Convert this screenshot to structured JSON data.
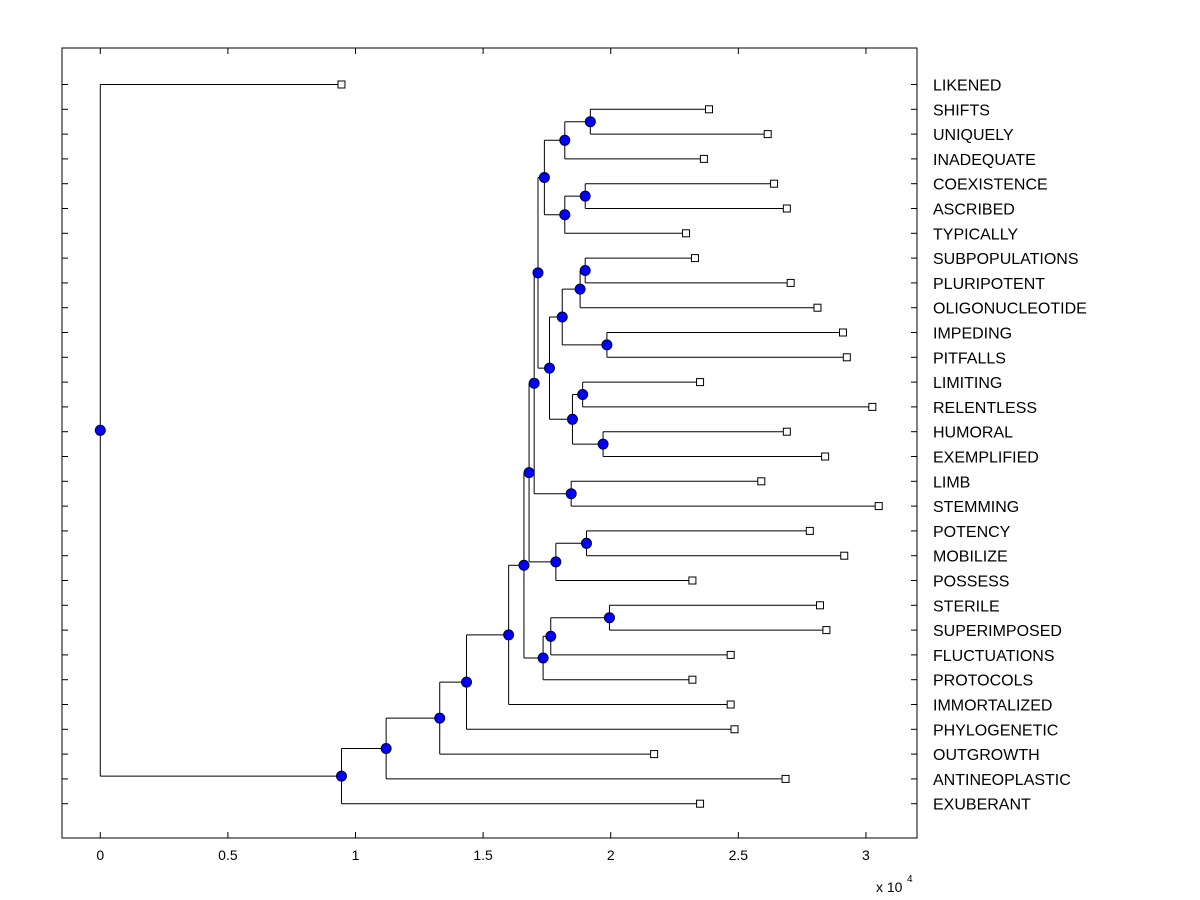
{
  "chart_data": {
    "type": "dendrogram",
    "orientation": "horizontal",
    "x_multiplier_label": "x 10",
    "x_multiplier_exponent": "4",
    "xlim": [
      -0.15,
      3.2
    ],
    "x_ticks": [
      {
        "value": 0,
        "label": "0"
      },
      {
        "value": 0.5,
        "label": "0.5"
      },
      {
        "value": 1,
        "label": "1"
      },
      {
        "value": 1.5,
        "label": "1.5"
      },
      {
        "value": 2,
        "label": "2"
      },
      {
        "value": 2.5,
        "label": "2.5"
      },
      {
        "value": 3,
        "label": "3"
      }
    ],
    "colors": {
      "internal_node": "#0000ff",
      "leaf_marker": "#ffffff",
      "line": "#000000"
    },
    "leaves": [
      {
        "id": "l0",
        "label": "LIKENED",
        "x": 0.945
      },
      {
        "id": "l1",
        "label": "SHIFTS",
        "x": 2.385
      },
      {
        "id": "l2",
        "label": "UNIQUELY",
        "x": 2.615
      },
      {
        "id": "l3",
        "label": "INADEQUATE",
        "x": 2.365
      },
      {
        "id": "l4",
        "label": "COEXISTENCE",
        "x": 2.64
      },
      {
        "id": "l5",
        "label": "ASCRIBED",
        "x": 2.69
      },
      {
        "id": "l6",
        "label": "TYPICALLY",
        "x": 2.295
      },
      {
        "id": "l7",
        "label": "SUBPOPULATIONS",
        "x": 2.33
      },
      {
        "id": "l8",
        "label": "PLURIPOTENT",
        "x": 2.705
      },
      {
        "id": "l9",
        "label": "OLIGONUCLEOTIDE",
        "x": 2.81
      },
      {
        "id": "l10",
        "label": "IMPEDING",
        "x": 2.91
      },
      {
        "id": "l11",
        "label": "PITFALLS",
        "x": 2.925
      },
      {
        "id": "l12",
        "label": "LIMITING",
        "x": 2.35
      },
      {
        "id": "l13",
        "label": "RELENTLESS",
        "x": 3.025
      },
      {
        "id": "l14",
        "label": "HUMORAL",
        "x": 2.69
      },
      {
        "id": "l15",
        "label": "EXEMPLIFIED",
        "x": 2.84
      },
      {
        "id": "l16",
        "label": "LIMB",
        "x": 2.59
      },
      {
        "id": "l17",
        "label": "STEMMING",
        "x": 3.05
      },
      {
        "id": "l18",
        "label": "POTENCY",
        "x": 2.78
      },
      {
        "id": "l19",
        "label": "MOBILIZE",
        "x": 2.915
      },
      {
        "id": "l20",
        "label": "POSSESS",
        "x": 2.32
      },
      {
        "id": "l21",
        "label": "STERILE",
        "x": 2.82
      },
      {
        "id": "l22",
        "label": "SUPERIMPOSED",
        "x": 2.845
      },
      {
        "id": "l23",
        "label": "FLUCTUATIONS",
        "x": 2.47
      },
      {
        "id": "l24",
        "label": "PROTOCOLS",
        "x": 2.32
      },
      {
        "id": "l25",
        "label": "IMMORTALIZED",
        "x": 2.47
      },
      {
        "id": "l26",
        "label": "PHYLOGENETIC",
        "x": 2.485
      },
      {
        "id": "l27",
        "label": "OUTGROWTH",
        "x": 2.17
      },
      {
        "id": "l28",
        "label": "ANTINEOPLASTIC",
        "x": 2.685
      },
      {
        "id": "l29",
        "label": "EXUBERANT",
        "x": 2.35
      }
    ],
    "nodes": [
      {
        "id": "n_a",
        "x": 1.92,
        "children": [
          "l1",
          "l2"
        ]
      },
      {
        "id": "n_b",
        "x": 1.82,
        "children": [
          "n_a",
          "l3"
        ]
      },
      {
        "id": "n_c",
        "x": 1.9,
        "children": [
          "l4",
          "l5"
        ]
      },
      {
        "id": "n_d",
        "x": 1.82,
        "children": [
          "n_c",
          "l6"
        ]
      },
      {
        "id": "n_e",
        "x": 1.74,
        "children": [
          "n_b",
          "n_d"
        ]
      },
      {
        "id": "n_f",
        "x": 1.9,
        "children": [
          "l7",
          "l8"
        ]
      },
      {
        "id": "n_g",
        "x": 1.88,
        "children": [
          "n_f",
          "l9"
        ]
      },
      {
        "id": "n_h",
        "x": 1.985,
        "children": [
          "l10",
          "l11"
        ]
      },
      {
        "id": "n_i",
        "x": 1.81,
        "children": [
          "n_g",
          "n_h"
        ]
      },
      {
        "id": "n_j",
        "x": 1.89,
        "children": [
          "l12",
          "l13"
        ]
      },
      {
        "id": "n_k",
        "x": 1.97,
        "children": [
          "l14",
          "l15"
        ]
      },
      {
        "id": "n_l",
        "x": 1.85,
        "children": [
          "n_j",
          "n_k"
        ]
      },
      {
        "id": "n_m",
        "x": 1.76,
        "children": [
          "n_i",
          "n_l"
        ]
      },
      {
        "id": "n_n",
        "x": 1.715,
        "children": [
          "n_e",
          "n_m"
        ]
      },
      {
        "id": "n_o",
        "x": 1.845,
        "children": [
          "l16",
          "l17"
        ]
      },
      {
        "id": "n_p",
        "x": 1.7,
        "children": [
          "n_n",
          "n_o"
        ]
      },
      {
        "id": "n_q",
        "x": 1.905,
        "children": [
          "l18",
          "l19"
        ]
      },
      {
        "id": "n_r",
        "x": 1.785,
        "children": [
          "n_q",
          "l20"
        ]
      },
      {
        "id": "n_s",
        "x": 1.68,
        "children": [
          "n_p",
          "n_r"
        ]
      },
      {
        "id": "n_t",
        "x": 1.995,
        "children": [
          "l21",
          "l22"
        ]
      },
      {
        "id": "n_u",
        "x": 1.765,
        "children": [
          "n_t",
          "l23"
        ]
      },
      {
        "id": "n_v",
        "x": 1.735,
        "children": [
          "n_u",
          "l24"
        ]
      },
      {
        "id": "n_w",
        "x": 1.66,
        "children": [
          "n_s",
          "n_v"
        ]
      },
      {
        "id": "n_x",
        "x": 1.6,
        "children": [
          "n_w",
          "l25"
        ]
      },
      {
        "id": "n_y",
        "x": 1.435,
        "children": [
          "n_x",
          "l26"
        ]
      },
      {
        "id": "n_z",
        "x": 1.33,
        "children": [
          "n_y",
          "l27"
        ]
      },
      {
        "id": "n_aa",
        "x": 1.12,
        "children": [
          "n_z",
          "l28"
        ]
      },
      {
        "id": "n_bb",
        "x": 0.945,
        "children": [
          "n_aa",
          "l29"
        ]
      },
      {
        "id": "n_root",
        "x": 0.0,
        "children": [
          "l0",
          "n_bb"
        ]
      }
    ]
  }
}
